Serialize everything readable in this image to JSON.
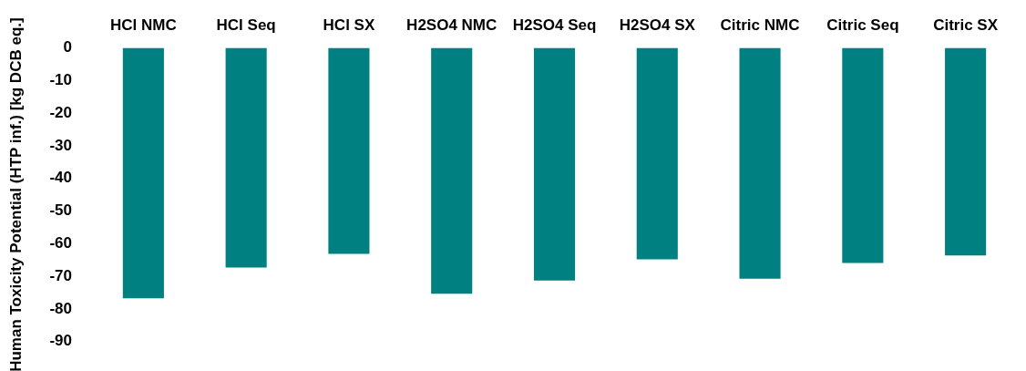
{
  "chart_data": {
    "type": "bar",
    "ylabel": "Human Toxicity Potential (HTP inf.) [kg DCB eq.]",
    "categories": [
      "HCl NMC",
      "HCl Seq",
      "HCl SX",
      "H2SO4 NMC",
      "H2SO4 Seq",
      "H2SO4 SX",
      "Citric NMC",
      "Citric Seq",
      "Citric SX"
    ],
    "values": [
      -76.7,
      -67.3,
      -63.1,
      -75.3,
      -71.3,
      -64.8,
      -70.7,
      -65.9,
      -63.6
    ],
    "color": "#008080",
    "ylim": [
      -90,
      0
    ],
    "yticks": [
      0,
      -10,
      -20,
      -30,
      -40,
      -50,
      -60,
      -70,
      -80,
      -90
    ],
    "grid": false,
    "legend": false
  }
}
